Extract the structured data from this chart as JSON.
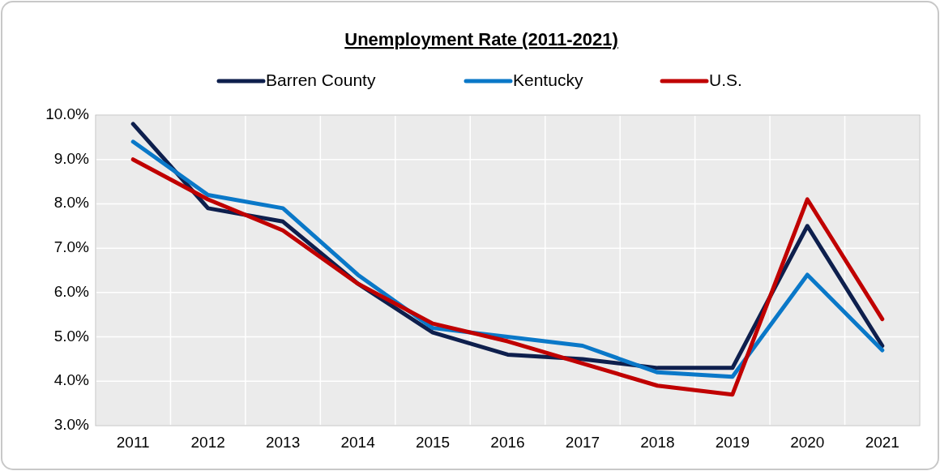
{
  "chart_data": {
    "type": "line",
    "title": "Unemployment Rate (2011-2021)",
    "categories": [
      "2011",
      "2012",
      "2013",
      "2014",
      "2015",
      "2016",
      "2017",
      "2018",
      "2019",
      "2020",
      "2021"
    ],
    "series": [
      {
        "name": "Barren County",
        "color": "#0e1f4d",
        "values": [
          9.8,
          7.9,
          7.6,
          6.2,
          5.1,
          4.6,
          4.5,
          4.3,
          4.3,
          7.5,
          4.8
        ]
      },
      {
        "name": "Kentucky",
        "color": "#0a78c8",
        "values": [
          9.4,
          8.2,
          7.9,
          6.4,
          5.2,
          5.0,
          4.8,
          4.2,
          4.1,
          6.4,
          4.7
        ]
      },
      {
        "name": "U.S.",
        "color": "#c00000",
        "values": [
          9.0,
          8.1,
          7.4,
          6.2,
          5.3,
          4.9,
          4.4,
          3.9,
          3.7,
          8.1,
          5.4
        ]
      }
    ],
    "ylim": [
      3,
      10
    ],
    "yticks": [
      {
        "value": 3,
        "label": "3.0%"
      },
      {
        "value": 4,
        "label": "4.0%"
      },
      {
        "value": 5,
        "label": "5.0%"
      },
      {
        "value": 6,
        "label": "6.0%"
      },
      {
        "value": 7,
        "label": "7.0%"
      },
      {
        "value": 8,
        "label": "8.0%"
      },
      {
        "value": 9,
        "label": "9.0%"
      },
      {
        "value": 10,
        "label": "10.0%"
      }
    ],
    "grid": true,
    "legend": "top",
    "marker": "none",
    "line_style": "solid"
  }
}
